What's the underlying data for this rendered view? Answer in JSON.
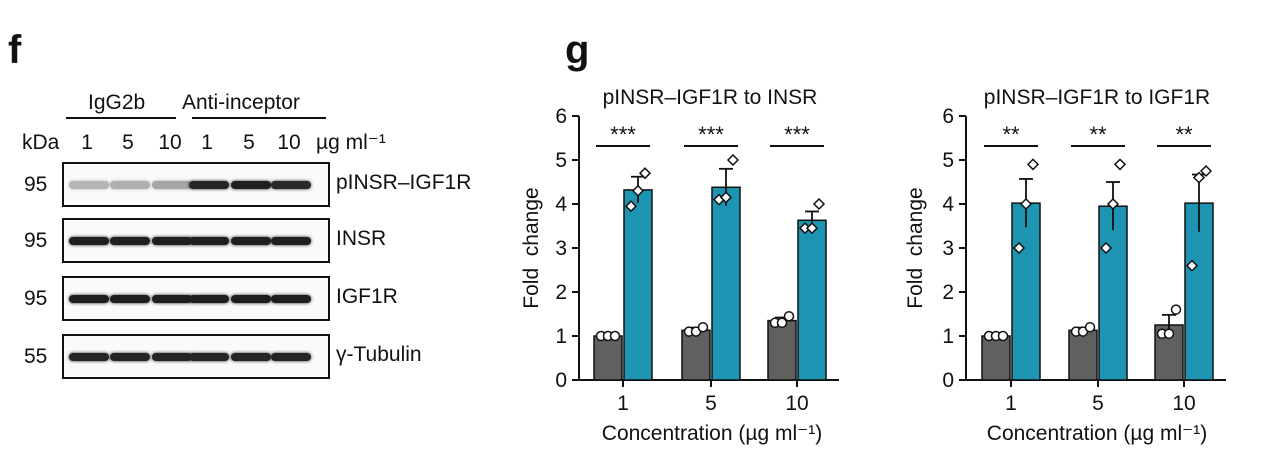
{
  "panel_f": {
    "letter": "f",
    "groups": [
      "IgG2b",
      "Anti-inceptor"
    ],
    "kda_label": "kDa",
    "lane_labels": [
      "1",
      "5",
      "10",
      "1",
      "5",
      "10"
    ],
    "unit": "µg ml⁻¹",
    "blots": [
      {
        "marker": "95",
        "name": "pINSR–IGF1R",
        "intensities": [
          0.25,
          0.28,
          0.32,
          0.92,
          0.95,
          0.9
        ]
      },
      {
        "marker": "95",
        "name": "INSR",
        "intensities": [
          0.95,
          0.95,
          0.95,
          0.95,
          0.95,
          0.95
        ]
      },
      {
        "marker": "95",
        "name": "IGF1R",
        "intensities": [
          0.95,
          0.95,
          0.95,
          0.95,
          0.95,
          0.95
        ]
      },
      {
        "marker": "55",
        "name": "γ-Tubulin",
        "intensities": [
          0.92,
          0.92,
          0.92,
          0.92,
          0.92,
          0.92
        ]
      }
    ]
  },
  "panel_g": {
    "letter": "g",
    "colors": {
      "control": "#606060",
      "treated": "#1d94b1"
    },
    "chart_data": [
      {
        "type": "bar",
        "title": "pINSR–IGF1R to INSR",
        "xlabel": "Concentration (µg ml⁻¹)",
        "ylabel": "Fold  change",
        "ylim": [
          0,
          6
        ],
        "yticks": [
          0,
          1,
          2,
          3,
          4,
          5,
          6
        ],
        "categories": [
          "1",
          "5",
          "10"
        ],
        "series": [
          {
            "values": [
              1.0,
              1.13,
              1.35
            ],
            "errors": [
              0.0,
              0.06,
              0.07
            ],
            "points": [
              [
                1.0,
                1.0,
                1.0
              ],
              [
                1.1,
                1.1,
                1.2
              ],
              [
                1.3,
                1.3,
                1.45
              ]
            ]
          },
          {
            "values": [
              4.32,
              4.38,
              3.63
            ],
            "errors": [
              0.3,
              0.42,
              0.2
            ],
            "points": [
              [
                3.95,
                4.3,
                4.7
              ],
              [
                4.1,
                4.15,
                5.0
              ],
              [
                3.45,
                3.45,
                4.0
              ]
            ]
          }
        ],
        "significance": [
          "***",
          "***",
          "***"
        ]
      },
      {
        "type": "bar",
        "title": "pINSR–IGF1R to IGF1R",
        "xlabel": "Concentration (µg ml⁻¹)",
        "ylabel": "Fold  change",
        "ylim": [
          0,
          6
        ],
        "yticks": [
          0,
          1,
          2,
          3,
          4,
          5,
          6
        ],
        "categories": [
          "1",
          "5",
          "10"
        ],
        "series": [
          {
            "values": [
              1.0,
              1.13,
              1.25
            ],
            "errors": [
              0.0,
              0.06,
              0.23
            ],
            "points": [
              [
                1.0,
                1.0,
                1.0
              ],
              [
                1.1,
                1.1,
                1.2
              ],
              [
                1.05,
                1.05,
                1.6
              ]
            ]
          },
          {
            "values": [
              4.02,
              3.95,
              4.02
            ],
            "errors": [
              0.55,
              0.55,
              0.65
            ],
            "points": [
              [
                3.0,
                4.0,
                4.9
              ],
              [
                3.0,
                4.0,
                4.9
              ],
              [
                2.6,
                4.6,
                4.75
              ]
            ]
          }
        ],
        "significance": [
          "**",
          "**",
          "**"
        ]
      }
    ]
  }
}
